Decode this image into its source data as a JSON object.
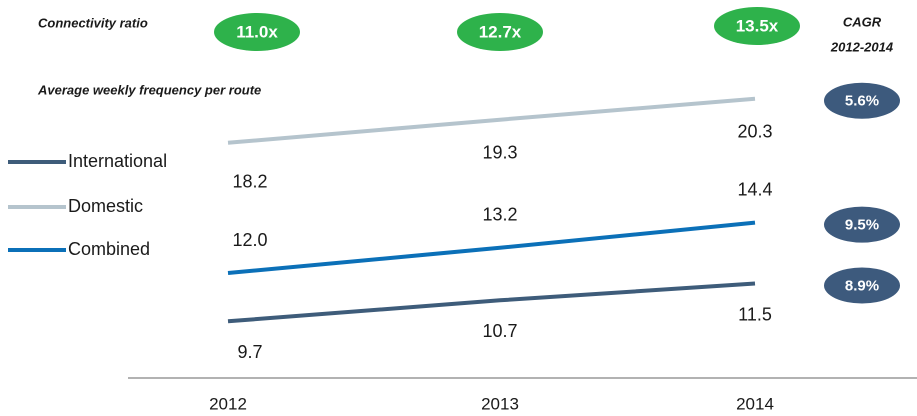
{
  "chart_data": {
    "type": "line",
    "subtitle": "Average weekly frequency per route",
    "connectivity_label": "Connectivity ratio",
    "connectivity": [
      "11.0x",
      "12.7x",
      "13.5x"
    ],
    "cagr_label": [
      "CAGR",
      "2012-2014"
    ],
    "categories": [
      "2012",
      "2013",
      "2014"
    ],
    "series": [
      {
        "name": "International",
        "color": "#3e5c7a",
        "values": [
          9.7,
          10.7,
          11.5
        ],
        "value_labels": [
          "9.7",
          "10.7",
          "11.5"
        ],
        "cagr": "8.9%"
      },
      {
        "name": "Domestic",
        "color": "#b5c4cd",
        "values": [
          18.2,
          19.3,
          20.3
        ],
        "value_labels": [
          "18.2",
          "19.3",
          "20.3"
        ],
        "cagr": "5.6%"
      },
      {
        "name": "Combined",
        "color": "#0b70b8",
        "values": [
          12.0,
          13.2,
          14.4
        ],
        "value_labels": [
          "12.0",
          "13.2",
          "14.4"
        ],
        "cagr": "9.5%"
      }
    ],
    "ylim": [
      7,
      25
    ],
    "connectivity_color": "#2eb24b",
    "badge_color": "#3d5a7d"
  }
}
